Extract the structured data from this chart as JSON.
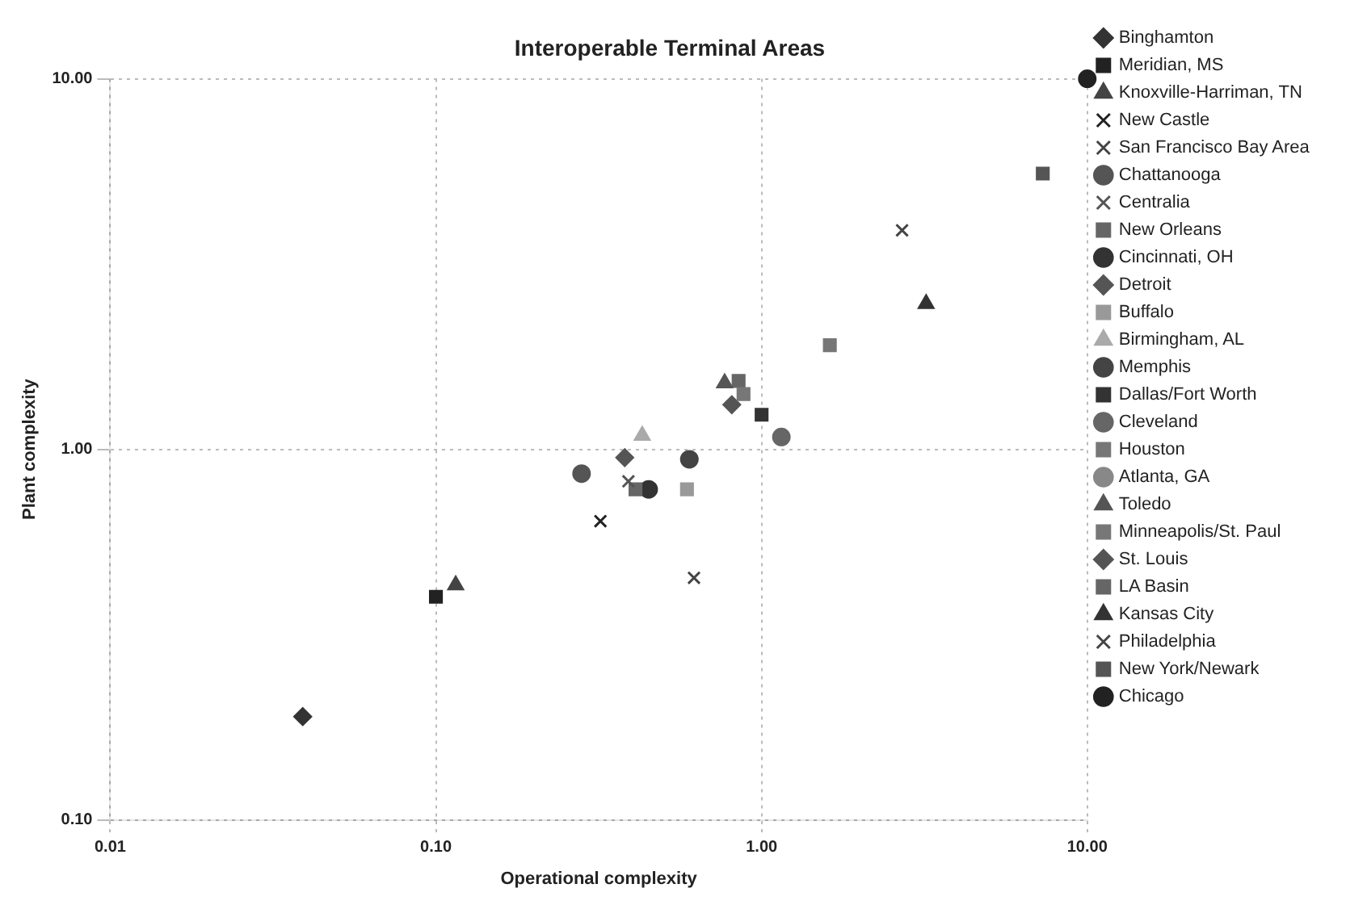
{
  "chart_data": {
    "type": "scatter",
    "title": "Interoperable Terminal Areas",
    "xlabel": "Operational complexity",
    "ylabel": "Plant complexity",
    "log": "xy",
    "grid": true,
    "legend": "right",
    "xlim": [
      0.01,
      10
    ],
    "xticks": [
      {
        "value": 0.01,
        "label": "0.01"
      },
      {
        "value": 0.1,
        "label": "0.10"
      },
      {
        "value": 1,
        "label": "1.00"
      },
      {
        "value": 10,
        "label": "10.00"
      }
    ],
    "ylim": [
      0.1,
      10
    ],
    "yticks": [
      {
        "value": 0.1,
        "label": "0.10"
      },
      {
        "value": 1,
        "label": "1.00"
      },
      {
        "value": 10,
        "label": "10.00"
      }
    ],
    "series": [
      {
        "name": "Binghamton",
        "color": "#333333",
        "marker": "diamond",
        "x": [
          0.039
        ],
        "values": [
          0.19
        ]
      },
      {
        "name": "Meridian, MS",
        "color": "#222222",
        "marker": "square",
        "x": [
          0.1
        ],
        "values": [
          0.4
        ]
      },
      {
        "name": "Knoxville-Harriman, TN",
        "color": "#444444",
        "marker": "triangle",
        "x": [
          0.115
        ],
        "values": [
          0.43
        ]
      },
      {
        "name": "New Castle",
        "color": "#222222",
        "marker": "cross",
        "x": [
          0.32
        ],
        "values": [
          0.64
        ]
      },
      {
        "name": "San Francisco Bay Area",
        "color": "#444444",
        "marker": "cross",
        "x": [
          0.62
        ],
        "values": [
          0.45
        ]
      },
      {
        "name": "Chattanooga",
        "color": "#555555",
        "marker": "circle",
        "x": [
          0.28
        ],
        "values": [
          0.86
        ]
      },
      {
        "name": "Centralia",
        "color": "#555555",
        "marker": "cross",
        "x": [
          0.39
        ],
        "values": [
          0.82
        ]
      },
      {
        "name": "New Orleans",
        "color": "#666666",
        "marker": "square",
        "x": [
          0.41
        ],
        "values": [
          0.78
        ]
      },
      {
        "name": "Cincinnati, OH",
        "color": "#333333",
        "marker": "circle",
        "x": [
          0.45
        ],
        "values": [
          0.78
        ]
      },
      {
        "name": "Detroit",
        "color": "#555555",
        "marker": "diamond",
        "x": [
          0.38
        ],
        "values": [
          0.95
        ]
      },
      {
        "name": "Buffalo",
        "color": "#999999",
        "marker": "square",
        "x": [
          0.59
        ],
        "values": [
          0.78
        ]
      },
      {
        "name": "Birmingham, AL",
        "color": "#aaaaaa",
        "marker": "triangle",
        "x": [
          0.43
        ],
        "values": [
          1.09
        ]
      },
      {
        "name": "Memphis",
        "color": "#444444",
        "marker": "circle",
        "x": [
          0.6
        ],
        "values": [
          0.94
        ]
      },
      {
        "name": "Dallas/Fort Worth",
        "color": "#333333",
        "marker": "square",
        "x": [
          1.0
        ],
        "values": [
          1.24
        ]
      },
      {
        "name": "Cleveland",
        "color": "#666666",
        "marker": "circle",
        "x": [
          1.15
        ],
        "values": [
          1.08
        ]
      },
      {
        "name": "Houston",
        "color": "#777777",
        "marker": "square",
        "x": [
          1.62
        ],
        "values": [
          1.91
        ]
      },
      {
        "name": "Atlanta, GA",
        "color": "#888888",
        "marker": "none",
        "x": [
          null
        ],
        "values": [
          null
        ]
      },
      {
        "name": "Toledo",
        "color": "#555555",
        "marker": "triangle",
        "x": [
          0.77
        ],
        "values": [
          1.51
        ]
      },
      {
        "name": "Minneapolis/St. Paul",
        "color": "#777777",
        "marker": "square",
        "x": [
          0.88
        ],
        "values": [
          1.41
        ]
      },
      {
        "name": "St. Louis",
        "color": "#555555",
        "marker": "diamond",
        "x": [
          0.81
        ],
        "values": [
          1.32
        ]
      },
      {
        "name": "LA Basin",
        "color": "#666666",
        "marker": "square",
        "x": [
          0.85
        ],
        "values": [
          1.53
        ]
      },
      {
        "name": "Kansas City",
        "color": "#333333",
        "marker": "triangle",
        "x": [
          3.2
        ],
        "values": [
          2.47
        ]
      },
      {
        "name": "Philadelphia",
        "color": "#444444",
        "marker": "cross",
        "x": [
          2.7
        ],
        "values": [
          3.9
        ]
      },
      {
        "name": "New York/Newark",
        "color": "#555555",
        "marker": "square",
        "x": [
          7.3
        ],
        "values": [
          5.55
        ]
      },
      {
        "name": "Chicago",
        "color": "#222222",
        "marker": "circle",
        "x": [
          10
        ],
        "values": [
          10
        ]
      }
    ]
  }
}
